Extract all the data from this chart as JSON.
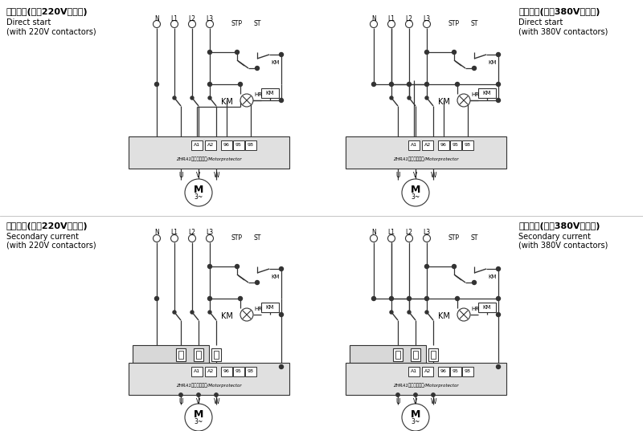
{
  "title_tl_zh": "直接启动(配合220V接触器)",
  "title_tl_en1": "Direct start",
  "title_tl_en2": "(with 220V contactors)",
  "title_tr_zh": "直接启动(配合380V接触器)",
  "title_tr_en1": "Direct start",
  "title_tr_en2": "(with 380V contactors)",
  "title_bl_zh": "二次电流(配合220V接触器)",
  "title_bl_en1": "Secondary current",
  "title_bl_en2": "(with 220V contactors)",
  "title_br_zh": "二次电流(配合380V接触器)",
  "title_br_en1": "Secondary current",
  "title_br_en2": "(with 380V contactors)",
  "bg_color": "#ffffff",
  "line_color": "#333333",
  "box_fill": "#e0e0e0"
}
